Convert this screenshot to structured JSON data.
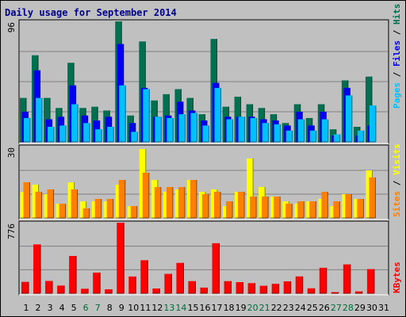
{
  "title": "Daily usage for September 2014",
  "colors": {
    "hits": "#007050",
    "files": "#0000f0",
    "pages": "#00c0ff",
    "visits": "#ffff00",
    "sites": "#ff8000",
    "kbytes": "#ff0000",
    "weekday": "#000000",
    "weekend": "#006c3c",
    "bg": "#c0c0c0",
    "grid": "#808080"
  },
  "legend": {
    "hits": "Hits",
    "files": "Files",
    "pages": "Pages",
    "visits": "Visits",
    "sites": "Sites",
    "kbytes": "KBytes",
    "sep": " / "
  },
  "chart_data": [
    {
      "type": "bar",
      "title": "Daily usage for September 2014",
      "categories": [
        "1",
        "2",
        "3",
        "4",
        "5",
        "6",
        "7",
        "8",
        "9",
        "10",
        "11",
        "12",
        "13",
        "14",
        "15",
        "16",
        "17",
        "18",
        "19",
        "20",
        "21",
        "22",
        "23",
        "24",
        "25",
        "26",
        "27",
        "28",
        "29",
        "30",
        "31"
      ],
      "weekend_days": [
        "6",
        "7",
        "13",
        "14",
        "20",
        "21",
        "27",
        "28"
      ],
      "ymax_label": "96",
      "ylim": [
        0,
        96
      ],
      "series": [
        {
          "name": "Hits",
          "values": [
            35,
            69,
            35,
            27,
            63,
            27,
            28,
            25,
            96,
            21,
            80,
            33,
            38,
            42,
            35,
            22,
            82,
            28,
            36,
            30,
            27,
            22,
            15,
            30,
            19,
            30,
            10,
            49,
            12,
            52,
            0
          ]
        },
        {
          "name": "Files",
          "values": [
            24,
            57,
            18,
            20,
            45,
            21,
            17,
            20,
            78,
            15,
            43,
            20,
            21,
            32,
            25,
            17,
            47,
            20,
            20,
            20,
            18,
            17,
            13,
            24,
            13,
            24,
            5,
            43,
            5,
            13,
            0
          ]
        },
        {
          "name": "Pages",
          "values": [
            19,
            35,
            12,
            13,
            30,
            15,
            10,
            12,
            45,
            8,
            42,
            20,
            19,
            22,
            23,
            13,
            43,
            18,
            20,
            19,
            15,
            14,
            9,
            18,
            9,
            18,
            6,
            37,
            9,
            29,
            0
          ]
        }
      ]
    },
    {
      "type": "bar",
      "ymax_label": "30",
      "ylim": [
        0,
        30
      ],
      "series": [
        {
          "name": "Visits",
          "values": [
            11,
            14,
            10,
            6,
            15,
            7,
            7,
            7,
            14,
            5,
            29,
            16,
            11,
            12,
            16,
            11,
            12,
            5,
            11,
            25,
            13,
            9,
            7,
            6,
            7,
            8,
            5,
            10,
            8,
            20,
            0
          ]
        },
        {
          "name": "Sites",
          "values": [
            15,
            11,
            12,
            6,
            12,
            4,
            8,
            8,
            16,
            5,
            19,
            13,
            13,
            13,
            16,
            10,
            11,
            7,
            11,
            9,
            9,
            9,
            6,
            7,
            7,
            11,
            7,
            10,
            8,
            17,
            0
          ]
        }
      ]
    },
    {
      "type": "bar",
      "ymax_label": "776",
      "ylim": [
        0,
        776
      ],
      "series": [
        {
          "name": "KBytes",
          "values": [
            125,
            537,
            135,
            84,
            410,
            49,
            227,
            43,
            776,
            184,
            363,
            52,
            213,
            334,
            133,
            62,
            550,
            133,
            122,
            111,
            82,
            104,
            131,
            185,
            54,
            280,
            12,
            317,
            20,
            265,
            0
          ]
        }
      ]
    }
  ]
}
